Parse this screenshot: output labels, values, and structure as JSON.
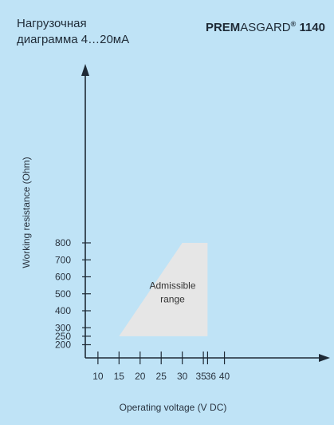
{
  "header": {
    "subtitle_line1": "Нагрузочная",
    "subtitle_line2": "диаграмма 4…20мА",
    "brand_bold": "PREM",
    "brand_regular": "ASGARD",
    "brand_reg_mark": "®",
    "model": "1140"
  },
  "chart_data": {
    "type": "area",
    "title": "",
    "xlabel": "Operating voltage  (V DC)",
    "ylabel": "Working resistance  (Ohm)",
    "x_ticks": [
      10,
      15,
      20,
      25,
      30,
      35,
      36,
      40
    ],
    "y_ticks": [
      200,
      250,
      300,
      400,
      500,
      600,
      700,
      800
    ],
    "region": {
      "label_line1": "Admissible",
      "label_line2": "range",
      "polygon": [
        [
          15,
          250
        ],
        [
          30,
          800
        ],
        [
          36,
          800
        ],
        [
          36,
          250
        ]
      ]
    },
    "colors": {
      "region": "#e6e6e6",
      "axis": "#1e2a36",
      "background": "#bfe3f6"
    }
  }
}
